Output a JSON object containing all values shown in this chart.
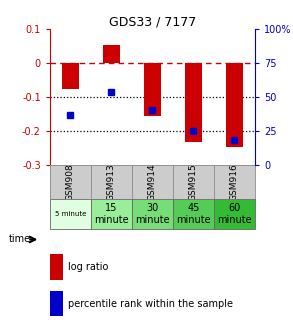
{
  "title": "GDS33 / 7177",
  "samples": [
    "GSM908",
    "GSM913",
    "GSM914",
    "GSM915",
    "GSM916"
  ],
  "log_ratios": [
    -0.075,
    0.055,
    -0.155,
    -0.23,
    -0.245
  ],
  "pct_values": [
    37,
    54,
    41,
    25,
    19
  ],
  "bar_color": "#cc0000",
  "dot_color": "#0000cc",
  "ylim_left": [
    -0.3,
    0.1
  ],
  "ylim_right": [
    0,
    100
  ],
  "yticks_left": [
    -0.3,
    -0.2,
    -0.1,
    0,
    0.1
  ],
  "yticks_right": [
    0,
    25,
    50,
    75,
    100
  ],
  "dotted_lines": [
    -0.1,
    -0.2
  ],
  "background_color": "#ffffff",
  "time_labels": [
    "5 minute",
    "15\nminute",
    "30\nminute",
    "45\nminute",
    "60\nminute"
  ],
  "time_colors": [
    "#e0ffe0",
    "#99ee99",
    "#77dd77",
    "#55cc55",
    "#33bb33"
  ],
  "gsm_bg": "#cccccc",
  "bar_width": 0.4
}
